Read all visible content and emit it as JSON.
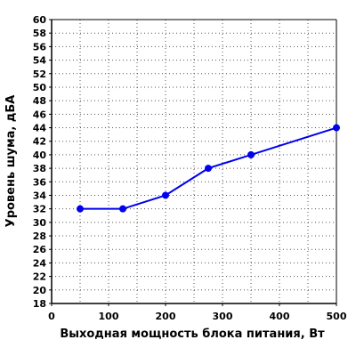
{
  "chart_data": {
    "type": "line",
    "title": "",
    "xlabel": "Выходная мощность блока питания, Вт",
    "ylabel": "Уровень шума, дБА",
    "xlim": [
      0,
      500
    ],
    "ylim": [
      18,
      60
    ],
    "x_ticks": [
      0,
      100,
      200,
      300,
      400,
      500
    ],
    "y_ticks": [
      18,
      20,
      22,
      24,
      26,
      28,
      30,
      32,
      34,
      36,
      38,
      40,
      42,
      44,
      46,
      48,
      50,
      52,
      54,
      56,
      58,
      60
    ],
    "x_minor_step": 50,
    "grid": true,
    "legend": "none",
    "series": [
      {
        "color": "#0000ee",
        "x": [
          50,
          125,
          200,
          275,
          350,
          500
        ],
        "y": [
          32,
          32,
          34,
          38,
          40,
          44
        ]
      }
    ]
  }
}
